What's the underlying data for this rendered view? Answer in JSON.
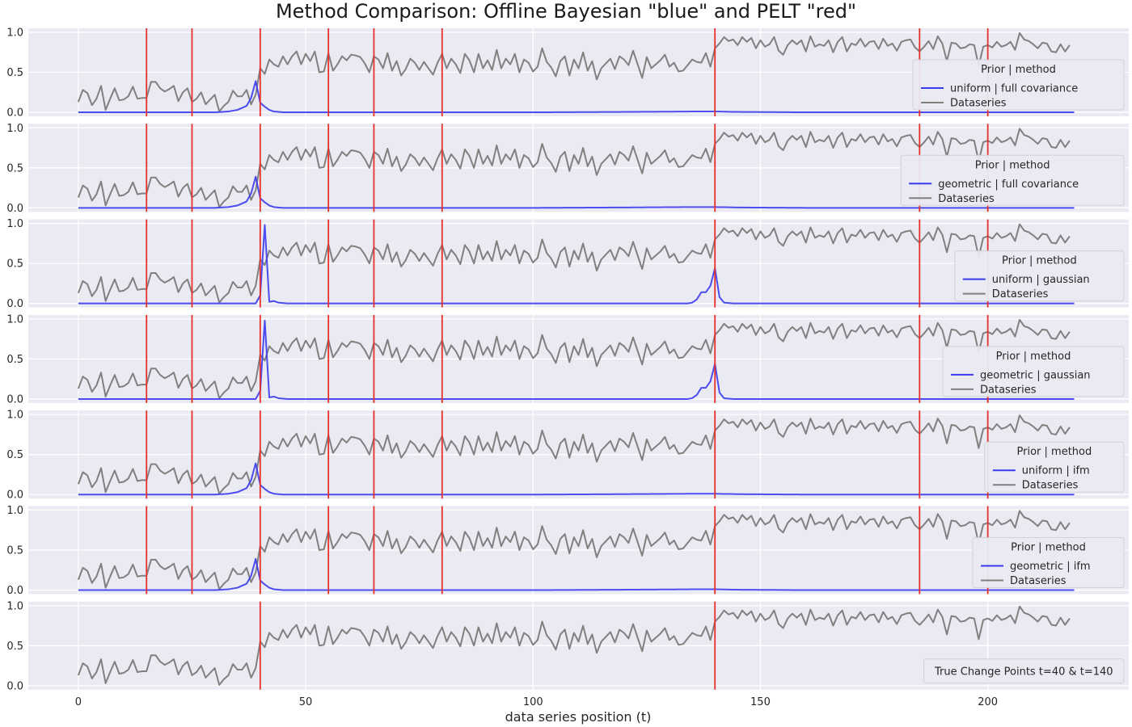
{
  "chart_data": {
    "type": "line",
    "title": "Method Comparison: Offline Bayesian \"blue\" and PELT \"red\"",
    "xlabel": "data series position (t)",
    "ylabel": "",
    "xlim": [
      -11,
      231
    ],
    "ylim": [
      -0.05,
      1.05
    ],
    "x_ticks": [
      0,
      50,
      100,
      150,
      200
    ],
    "y_ticks": [
      0.0,
      0.5,
      1.0
    ],
    "grid": true,
    "colors": {
      "background": "#eaeaf2",
      "grid": "#ffffff",
      "dataseries": "#808080",
      "probability": "#3a3aee",
      "changepoint": "#e8302a",
      "text": "#262626"
    },
    "dataseries": {
      "name": "Dataseries",
      "x_start": 0,
      "values": [
        0.13,
        0.28,
        0.24,
        0.09,
        0.17,
        0.33,
        0.03,
        0.17,
        0.3,
        0.15,
        0.16,
        0.2,
        0.32,
        0.17,
        0.18,
        0.18,
        0.38,
        0.38,
        0.3,
        0.26,
        0.29,
        0.33,
        0.14,
        0.25,
        0.3,
        0.13,
        0.17,
        0.25,
        0.1,
        0.16,
        0.22,
        0.01,
        0.08,
        0.13,
        0.27,
        0.2,
        0.2,
        0.28,
        0.1,
        0.22,
        0.55,
        0.48,
        0.66,
        0.6,
        0.57,
        0.7,
        0.6,
        0.7,
        0.76,
        0.6,
        0.73,
        0.64,
        0.76,
        0.5,
        0.51,
        0.74,
        0.52,
        0.6,
        0.7,
        0.65,
        0.72,
        0.71,
        0.69,
        0.61,
        0.5,
        0.7,
        0.66,
        0.55,
        0.74,
        0.52,
        0.64,
        0.46,
        0.54,
        0.67,
        0.62,
        0.53,
        0.63,
        0.55,
        0.47,
        0.62,
        0.73,
        0.55,
        0.67,
        0.6,
        0.49,
        0.73,
        0.65,
        0.5,
        0.73,
        0.55,
        0.65,
        0.53,
        0.78,
        0.55,
        0.67,
        0.6,
        0.73,
        0.5,
        0.66,
        0.62,
        0.51,
        0.57,
        0.8,
        0.63,
        0.56,
        0.45,
        0.64,
        0.7,
        0.46,
        0.66,
        0.55,
        0.75,
        0.52,
        0.64,
        0.41,
        0.55,
        0.61,
        0.67,
        0.54,
        0.7,
        0.66,
        0.59,
        0.77,
        0.6,
        0.43,
        0.69,
        0.55,
        0.6,
        0.65,
        0.72,
        0.57,
        0.62,
        0.51,
        0.52,
        0.59,
        0.66,
        0.63,
        0.62,
        0.74,
        0.57,
        0.8,
        0.86,
        0.94,
        0.89,
        0.91,
        0.84,
        0.94,
        0.88,
        0.93,
        0.8,
        0.9,
        0.82,
        0.85,
        0.94,
        0.77,
        0.72,
        0.84,
        0.9,
        0.85,
        0.9,
        0.76,
        0.95,
        0.82,
        0.85,
        0.83,
        0.9,
        0.75,
        0.88,
        0.94,
        0.76,
        0.86,
        0.84,
        0.92,
        0.82,
        0.88,
        0.89,
        0.79,
        0.92,
        0.83,
        0.86,
        0.77,
        0.88,
        0.9,
        0.91,
        0.81,
        0.76,
        0.82,
        0.89,
        0.79,
        0.95,
        0.86,
        0.64,
        0.87,
        0.86,
        0.8,
        0.81,
        0.85,
        0.84,
        0.58,
        0.82,
        0.84,
        0.81,
        0.88,
        0.82,
        0.84,
        0.88,
        0.78,
        0.99,
        0.91,
        0.89,
        0.85,
        0.8,
        0.87,
        0.86,
        0.76,
        0.75,
        0.85,
        0.76,
        0.84
      ]
    },
    "x_end": 219,
    "panels": [
      {
        "legend_title": "Prior | method",
        "series_name": "uniform | full covariance",
        "profile": "smooth",
        "pelt_changepoints": [
          15,
          25,
          40,
          55,
          65,
          80,
          140,
          185,
          200
        ]
      },
      {
        "legend_title": "Prior | method",
        "series_name": "geometric | full covariance",
        "profile": "smooth",
        "pelt_changepoints": [
          15,
          25,
          40,
          55,
          65,
          80,
          140,
          185,
          200
        ]
      },
      {
        "legend_title": "Prior | method",
        "series_name": "uniform | gaussian",
        "profile": "sharp",
        "pelt_changepoints": [
          15,
          25,
          40,
          55,
          65,
          80,
          140,
          185,
          200
        ]
      },
      {
        "legend_title": "Prior | method",
        "series_name": "geometric | gaussian",
        "profile": "sharp",
        "pelt_changepoints": [
          15,
          25,
          40,
          55,
          65,
          80,
          140,
          185,
          200
        ]
      },
      {
        "legend_title": "Prior | method",
        "series_name": "uniform | ifm",
        "profile": "smooth",
        "pelt_changepoints": [
          15,
          25,
          40,
          55,
          65,
          80,
          140,
          185,
          200
        ]
      },
      {
        "legend_title": "Prior | method",
        "series_name": "geometric | ifm",
        "profile": "smooth",
        "pelt_changepoints": [
          15,
          25,
          40,
          55,
          65,
          80,
          140,
          185,
          200
        ]
      },
      {
        "legend_title": "",
        "series_name": "",
        "profile": "none",
        "note": "True Change Points t=40 & t=140",
        "pelt_changepoints": [
          40,
          140
        ]
      }
    ],
    "probability_profiles": {
      "smooth": {
        "points": [
          [
            0,
            0.0
          ],
          [
            30,
            0.0
          ],
          [
            33,
            0.01
          ],
          [
            35,
            0.03
          ],
          [
            37,
            0.08
          ],
          [
            38,
            0.18
          ],
          [
            39,
            0.39
          ],
          [
            40,
            0.12
          ],
          [
            41,
            0.07
          ],
          [
            42,
            0.03
          ],
          [
            43,
            0.01
          ],
          [
            45,
            0.0
          ],
          [
            100,
            0.0
          ],
          [
            120,
            0.005
          ],
          [
            135,
            0.01
          ],
          [
            140,
            0.01
          ],
          [
            145,
            0.005
          ],
          [
            160,
            0.0
          ],
          [
            219,
            0.0
          ]
        ]
      },
      "sharp": {
        "points": [
          [
            0,
            0.0
          ],
          [
            39,
            0.0
          ],
          [
            40,
            0.1
          ],
          [
            41,
            0.98
          ],
          [
            42,
            0.02
          ],
          [
            43,
            0.03
          ],
          [
            44,
            0.01
          ],
          [
            46,
            0.0
          ],
          [
            134,
            0.0
          ],
          [
            135,
            0.01
          ],
          [
            136,
            0.05
          ],
          [
            137,
            0.14
          ],
          [
            138,
            0.14
          ],
          [
            139,
            0.22
          ],
          [
            140,
            0.44
          ],
          [
            141,
            0.08
          ],
          [
            142,
            0.01
          ],
          [
            144,
            0.0
          ],
          [
            219,
            0.0
          ]
        ]
      }
    }
  }
}
